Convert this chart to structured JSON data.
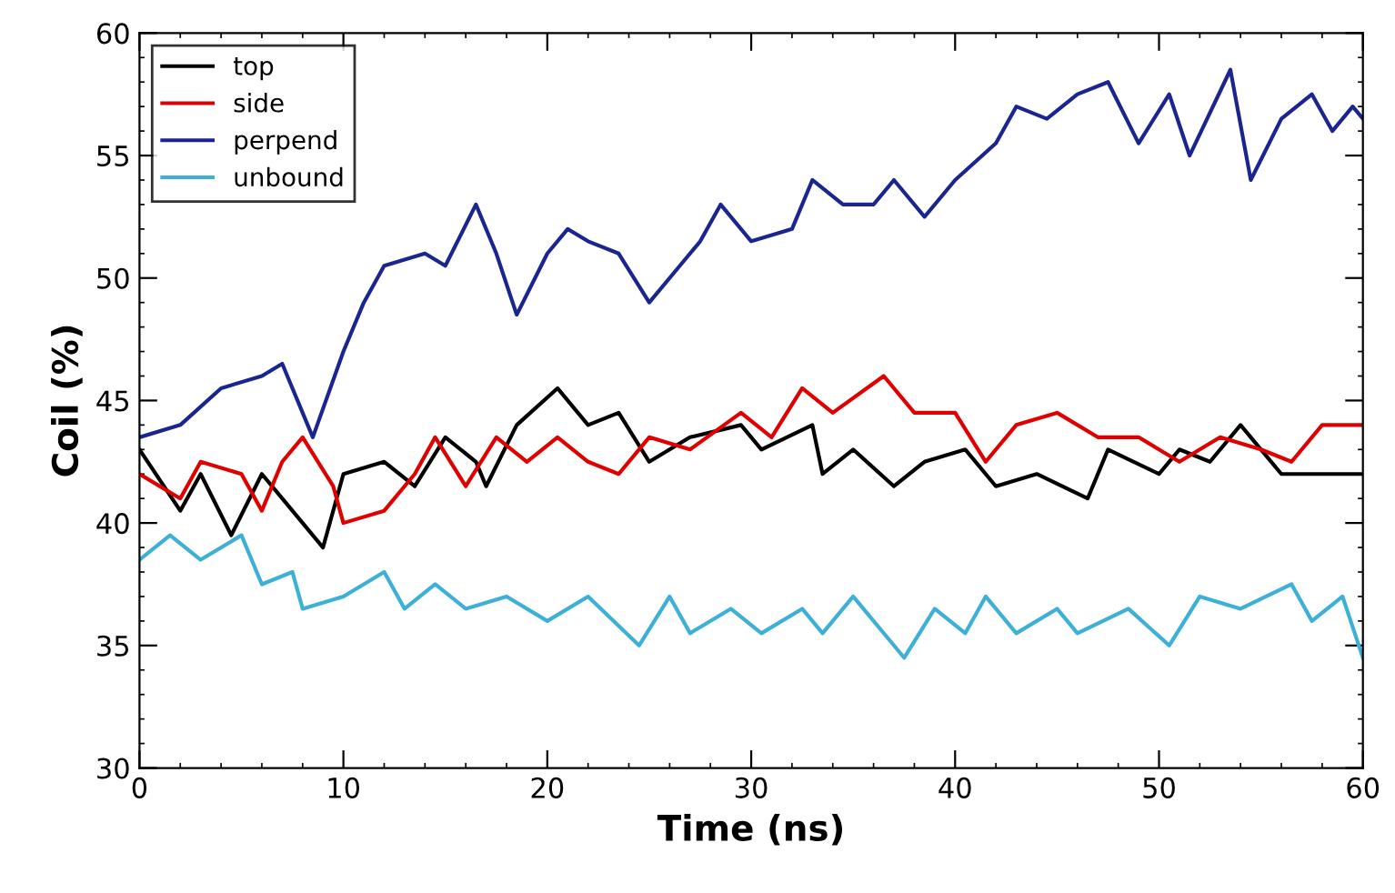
{
  "chart_data": {
    "type": "line",
    "xlabel": "Time (ns)",
    "ylabel": "Coil (%)",
    "xlim": [
      0,
      60
    ],
    "xticks": [
      0,
      10,
      20,
      30,
      40,
      50,
      60
    ],
    "ylim": [
      30,
      60
    ],
    "yticks": [
      30,
      35,
      40,
      45,
      50,
      55,
      60
    ],
    "grid": false,
    "legend": "top left",
    "marker": "none",
    "line_style": "solid",
    "series": [
      {
        "name": "top",
        "color": "#000000",
        "x": [
          0,
          2,
          3,
          4.5,
          6,
          7,
          9,
          10,
          12,
          13.5,
          15,
          16.5,
          17,
          18.5,
          20.5,
          22,
          23.5,
          25,
          27,
          29.5,
          30.5,
          33,
          33.5,
          35,
          37,
          38.5,
          40.5,
          42,
          44,
          46.5,
          47.5,
          50,
          51,
          52.5,
          54,
          55,
          56,
          58,
          60
        ],
        "values": [
          43,
          40.5,
          42,
          39.5,
          42,
          41,
          39,
          42,
          42.5,
          41.5,
          43.5,
          42.5,
          41.5,
          44,
          45.5,
          44,
          44.5,
          42.5,
          43.5,
          44,
          43,
          44,
          42,
          43,
          41.5,
          42.5,
          43,
          41.5,
          42,
          41,
          43,
          42,
          43,
          42.5,
          44,
          43,
          42,
          42,
          42
        ]
      },
      {
        "name": "side",
        "color": "#e00000",
        "x": [
          0,
          2,
          3,
          5,
          6,
          7,
          8,
          9.5,
          10,
          12,
          13.5,
          14.5,
          16,
          17.5,
          19,
          20.5,
          22,
          23.5,
          25,
          27,
          29.5,
          31,
          32.5,
          34,
          36.5,
          38,
          40,
          41.5,
          43,
          45,
          47,
          49,
          51,
          53,
          55,
          56.5,
          58,
          60
        ],
        "values": [
          42,
          41,
          42.5,
          42,
          40.5,
          42.5,
          43.5,
          41.5,
          40,
          40.5,
          42,
          43.5,
          41.5,
          43.5,
          42.5,
          43.5,
          42.5,
          42,
          43.5,
          43,
          44.5,
          43.5,
          45.5,
          44.5,
          46,
          44.5,
          44.5,
          42.5,
          44,
          44.5,
          43.5,
          43.5,
          42.5,
          43.5,
          43,
          42.5,
          44,
          44
        ]
      },
      {
        "name": "perpend",
        "color": "#1a2590",
        "x": [
          0,
          2,
          4,
          6,
          7,
          8.5,
          10,
          11,
          12,
          14,
          15,
          16.5,
          17.5,
          18.5,
          20,
          21,
          22,
          23.5,
          25,
          26.5,
          27.5,
          28.5,
          30,
          32,
          33,
          34.5,
          36,
          37,
          38.5,
          40,
          42,
          43,
          44.5,
          46,
          47.5,
          49,
          50.5,
          51.5,
          53.5,
          54.5,
          56,
          57.5,
          58.5,
          59.5,
          60
        ],
        "values": [
          43.5,
          44,
          45.5,
          46,
          46.5,
          43.5,
          47,
          49,
          50.5,
          51,
          50.5,
          53,
          51,
          48.5,
          51,
          52,
          51.5,
          51,
          49,
          50.5,
          51.5,
          53,
          51.5,
          52,
          54,
          53,
          53,
          54,
          52.5,
          54,
          55.5,
          57,
          56.5,
          57.5,
          58,
          55.5,
          57.5,
          55,
          58.5,
          54,
          56.5,
          57.5,
          56,
          57,
          56.5
        ]
      },
      {
        "name": "unbound",
        "color": "#3db0d8",
        "x": [
          0,
          1.5,
          3,
          5,
          6,
          7.5,
          8,
          10,
          12,
          13,
          14.5,
          16,
          18,
          20,
          22,
          24.5,
          26,
          27,
          29,
          30.5,
          32.5,
          33.5,
          35,
          37.5,
          39,
          40.5,
          41.5,
          43,
          45,
          46,
          48.5,
          50.5,
          52,
          54,
          56.5,
          57.5,
          59,
          60
        ],
        "values": [
          38.5,
          39.5,
          38.5,
          39.5,
          37.5,
          38,
          36.5,
          37,
          38,
          36.5,
          37.5,
          36.5,
          37,
          36,
          37,
          35,
          37,
          35.5,
          36.5,
          35.5,
          36.5,
          35.5,
          37,
          34.5,
          36.5,
          35.5,
          37,
          35.5,
          36.5,
          35.5,
          36.5,
          35,
          37,
          36.5,
          37.5,
          36,
          37,
          34.5
        ]
      }
    ]
  }
}
